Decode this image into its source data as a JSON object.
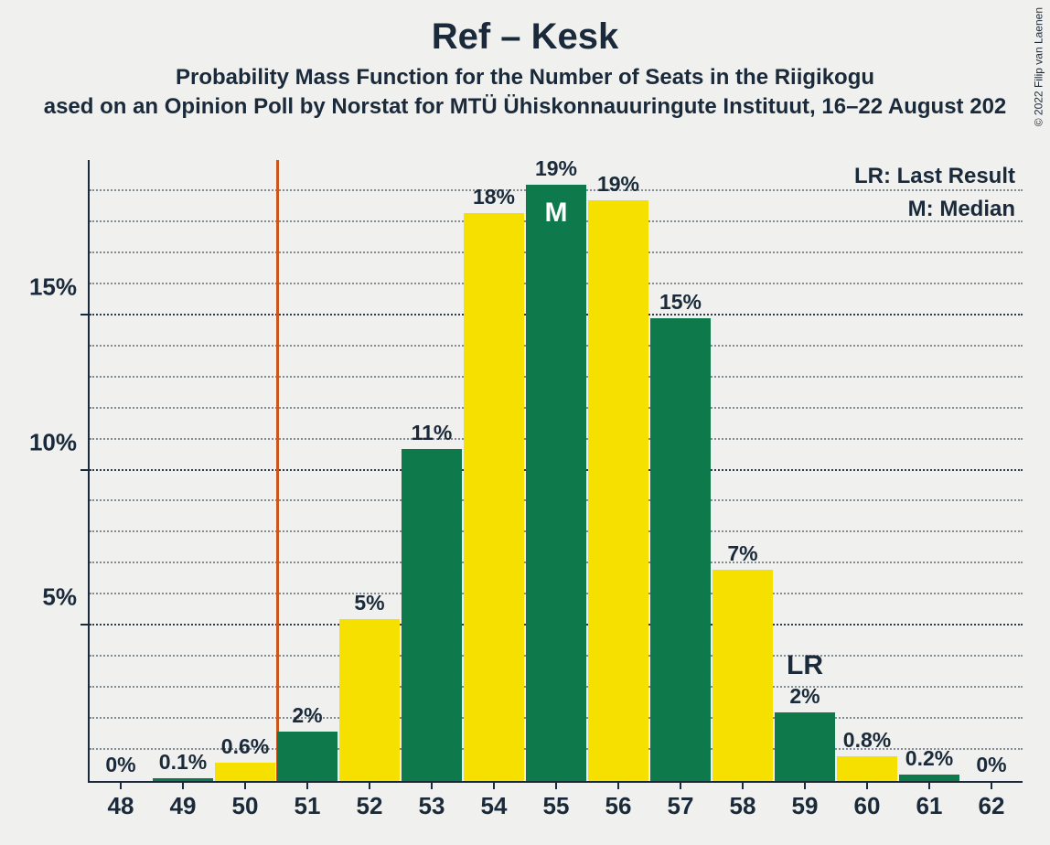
{
  "title": "Ref – Kesk",
  "subtitle1": "Probability Mass Function for the Number of Seats in the Riigikogu",
  "subtitle2": "ased on an Opinion Poll by Norstat for MTÜ Ühiskonnauuringute Instituut, 16–22 August 202",
  "copyright": "© 2022 Filip van Laenen",
  "legend": {
    "lr": "LR: Last Result",
    "m": "M: Median"
  },
  "chart": {
    "type": "bar",
    "background_color": "#f0f0ee",
    "axis_color": "#1a2a3a",
    "grid_major_color": "#1a2a3a",
    "grid_minor_color": "#1a2a3a",
    "ymax": 20,
    "y_major_step": 5,
    "y_minor_step": 1,
    "y_major_labels": [
      "5%",
      "10%",
      "15%"
    ],
    "vline_x": 50.5,
    "vline_color": "#cc5520",
    "colors": {
      "green": "#0e7a4b",
      "yellow": "#f6e000"
    },
    "categories": [
      "48",
      "49",
      "50",
      "51",
      "52",
      "53",
      "54",
      "55",
      "56",
      "57",
      "58",
      "59",
      "60",
      "61",
      "62"
    ],
    "bars": [
      {
        "v": 0,
        "label": "0%",
        "color": "yellow"
      },
      {
        "v": 0.1,
        "label": "0.1%",
        "color": "green"
      },
      {
        "v": 0.6,
        "label": "0.6%",
        "color": "yellow"
      },
      {
        "v": 1.6,
        "label": "2%",
        "color": "green"
      },
      {
        "v": 5.2,
        "label": "5%",
        "color": "yellow"
      },
      {
        "v": 10.7,
        "label": "11%",
        "color": "green"
      },
      {
        "v": 18.3,
        "label": "18%",
        "color": "yellow"
      },
      {
        "v": 19.2,
        "label": "19%",
        "color": "green",
        "annot": "M",
        "annot_style": "inside"
      },
      {
        "v": 18.7,
        "label": "19%",
        "color": "yellow"
      },
      {
        "v": 14.9,
        "label": "15%",
        "color": "green"
      },
      {
        "v": 6.8,
        "label": "7%",
        "color": "yellow"
      },
      {
        "v": 2.2,
        "label": "2%",
        "color": "green",
        "annot": "LR",
        "annot_style": "above"
      },
      {
        "v": 0.8,
        "label": "0.8%",
        "color": "yellow"
      },
      {
        "v": 0.2,
        "label": "0.2%",
        "color": "green"
      },
      {
        "v": 0,
        "label": "0%",
        "color": "yellow"
      }
    ],
    "label_fontsize": 23,
    "tick_fontsize": 26,
    "title_fontsize": 40,
    "subtitle_fontsize": 24
  }
}
